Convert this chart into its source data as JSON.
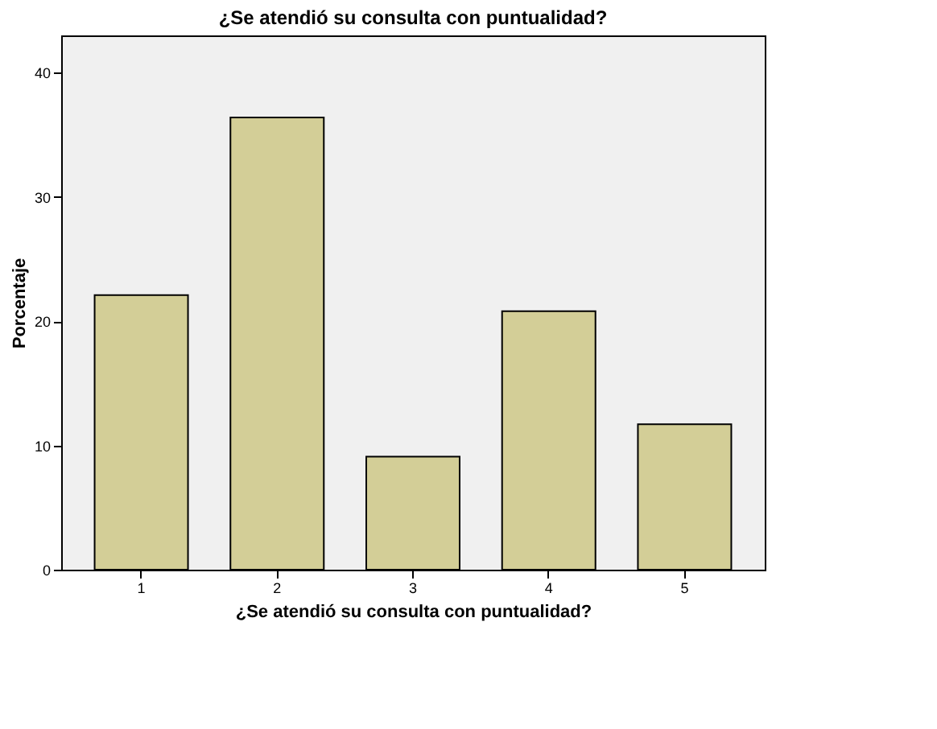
{
  "chart_data": {
    "type": "bar",
    "title": "¿Se atendió su consulta con puntualidad?",
    "xlabel": "¿Se atendió su consulta con puntualidad?",
    "ylabel": "Porcentaje",
    "categories": [
      "1",
      "2",
      "3",
      "4",
      "5"
    ],
    "values": [
      22.1,
      36.4,
      9.1,
      20.8,
      11.7
    ],
    "color": "#d3ce97",
    "ylim": [
      0,
      43
    ],
    "yticks": [
      0,
      10,
      20,
      30,
      40
    ],
    "grid": false
  }
}
